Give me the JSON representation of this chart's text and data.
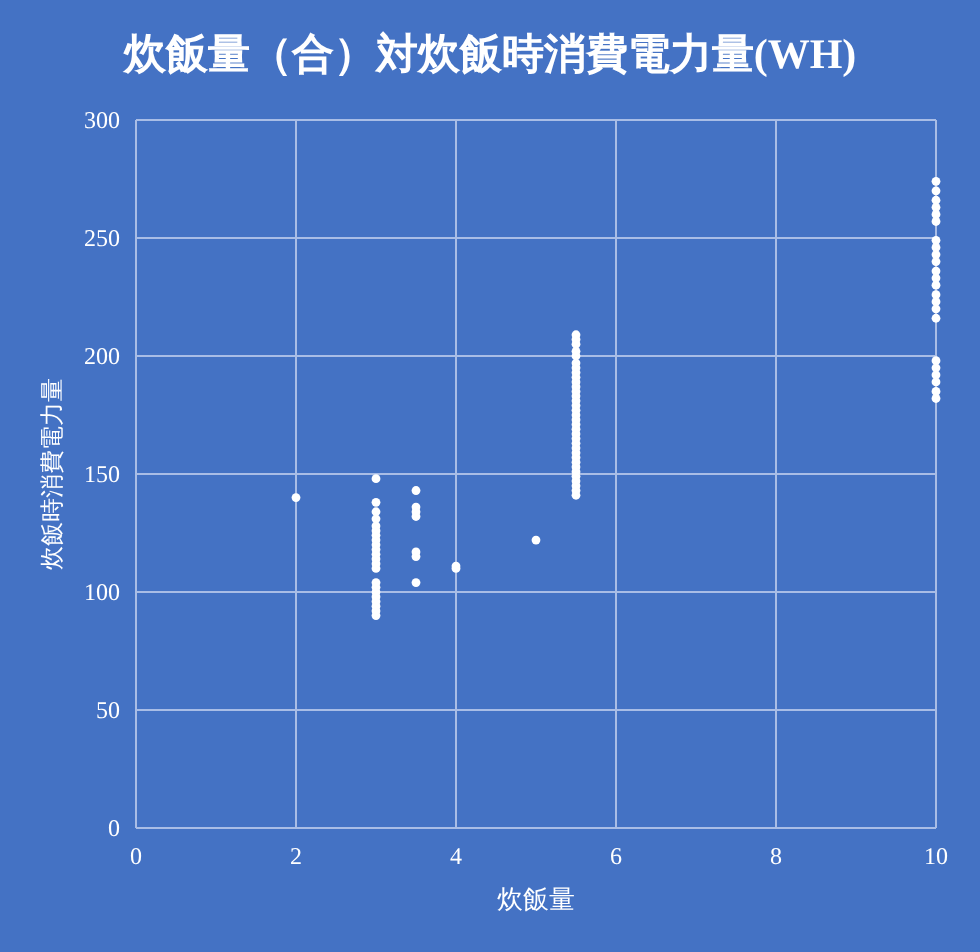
{
  "chart_data": {
    "type": "scatter",
    "title": "炊飯量（合）対炊飯時消費電力量(WH)",
    "xlabel": "炊飯量",
    "ylabel": "炊飯時消費電力量",
    "xlim": [
      0,
      10
    ],
    "ylim": [
      0,
      300
    ],
    "xticks": [
      0,
      2,
      4,
      6,
      8,
      10
    ],
    "yticks": [
      0,
      50,
      100,
      150,
      200,
      250,
      300
    ],
    "grid": true,
    "marker": "circle",
    "series": [
      {
        "color": "#ffffff",
        "x": [
          2,
          3,
          3,
          3,
          3,
          3,
          3,
          3,
          3,
          3,
          3,
          3,
          3,
          3,
          3,
          3,
          3,
          3,
          3,
          3,
          3,
          3,
          3,
          3.5,
          3.5,
          3.5,
          3.5,
          3.5,
          3.5,
          3.5,
          4,
          4,
          5,
          5.5,
          5.5,
          5.5,
          5.5,
          5.5,
          5.5,
          5.5,
          5.5,
          5.5,
          5.5,
          5.5,
          5.5,
          5.5,
          5.5,
          5.5,
          5.5,
          5.5,
          5.5,
          5.5,
          5.5,
          5.5,
          5.5,
          5.5,
          5.5,
          5.5,
          5.5,
          5.5,
          5.5,
          5.5,
          5.5,
          5.5,
          5.5,
          5.5,
          5.5,
          10,
          10,
          10,
          10,
          10,
          10,
          10,
          10,
          10,
          10,
          10,
          10,
          10,
          10,
          10,
          10,
          10,
          10,
          10,
          10,
          10,
          10,
          10
        ],
        "values": [
          140,
          148,
          138,
          134,
          131,
          128,
          126,
          124,
          122,
          120,
          118,
          116,
          114,
          112,
          110,
          104,
          102,
          100,
          98,
          96,
          94,
          92,
          90,
          143,
          136,
          134,
          132,
          117,
          115,
          104,
          111,
          110,
          122,
          141,
          143,
          145,
          147,
          149,
          151,
          153,
          155,
          157,
          159,
          161,
          163,
          165,
          167,
          169,
          171,
          173,
          175,
          177,
          179,
          181,
          183,
          185,
          187,
          189,
          191,
          193,
          195,
          197,
          200,
          202,
          205,
          207,
          209,
          274,
          270,
          266,
          263,
          260,
          257,
          249,
          246,
          243,
          240,
          236,
          233,
          230,
          226,
          223,
          220,
          216,
          198,
          195,
          192,
          189,
          185,
          182
        ]
      }
    ]
  }
}
